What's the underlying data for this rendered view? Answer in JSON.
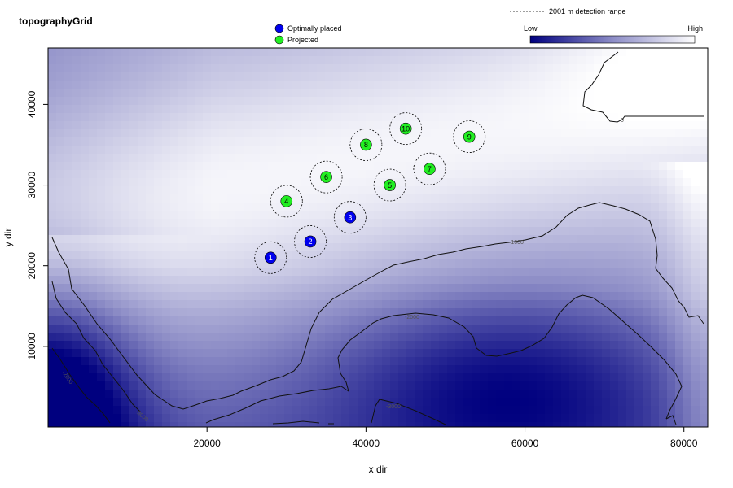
{
  "chart_data": {
    "type": "heatmap",
    "title": "topographyGrid",
    "xlabel": "x dir",
    "ylabel": "y dir",
    "xlim": [
      0,
      83000
    ],
    "ylim": [
      0,
      47000
    ],
    "x_ticks": [
      20000,
      40000,
      60000,
      80000
    ],
    "y_ticks": [
      10000,
      20000,
      30000,
      40000
    ],
    "colorbar": {
      "low_label": "Low",
      "high_label": "High",
      "low_color": "#00007f",
      "high_color": "#ffffff"
    },
    "range_legend": "2001 m detection range",
    "detection_range": 2001,
    "legend": [
      {
        "name": "Optimally placed",
        "color": "#0000ee"
      },
      {
        "name": "Projected",
        "color": "#22ee22"
      }
    ],
    "receivers": [
      {
        "id": "1",
        "x": 28000,
        "y": 21000,
        "status": "Optimally placed"
      },
      {
        "id": "2",
        "x": 33000,
        "y": 23000,
        "status": "Optimally placed"
      },
      {
        "id": "3",
        "x": 38000,
        "y": 26000,
        "status": "Optimally placed"
      },
      {
        "id": "4",
        "x": 30000,
        "y": 28000,
        "status": "Projected"
      },
      {
        "id": "5",
        "x": 43000,
        "y": 30000,
        "status": "Projected"
      },
      {
        "id": "6",
        "x": 35000,
        "y": 31000,
        "status": "Projected"
      },
      {
        "id": "7",
        "x": 48000,
        "y": 32000,
        "status": "Projected"
      },
      {
        "id": "8",
        "x": 40000,
        "y": 35000,
        "status": "Projected"
      },
      {
        "id": "9",
        "x": 53000,
        "y": 36000,
        "status": "Projected"
      },
      {
        "id": "10",
        "x": 45000,
        "y": 37000,
        "status": "Projected"
      }
    ],
    "contour_labels": [
      "0",
      "-1000",
      "-2000",
      "-3000",
      "-2000",
      "-3000"
    ],
    "grid": false
  }
}
